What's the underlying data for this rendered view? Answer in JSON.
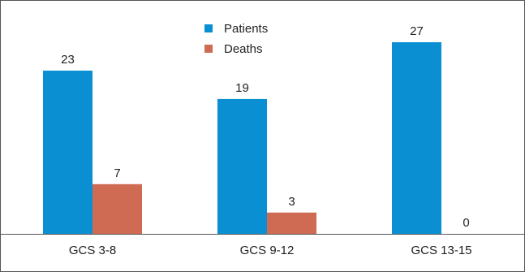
{
  "chart_data": {
    "type": "bar",
    "categories": [
      "GCS 3-8",
      "GCS 9-12",
      "GCS 13-15"
    ],
    "series": [
      {
        "name": "Patients",
        "color": "#0a8fd3",
        "values": [
          23,
          19,
          27
        ]
      },
      {
        "name": "Deaths",
        "color": "#d06b53",
        "values": [
          7,
          3,
          0
        ]
      }
    ],
    "title": "",
    "xlabel": "",
    "ylabel": "",
    "ylim": [
      0,
      27
    ],
    "grid": false,
    "legend": "top-center",
    "data_labels": true
  }
}
